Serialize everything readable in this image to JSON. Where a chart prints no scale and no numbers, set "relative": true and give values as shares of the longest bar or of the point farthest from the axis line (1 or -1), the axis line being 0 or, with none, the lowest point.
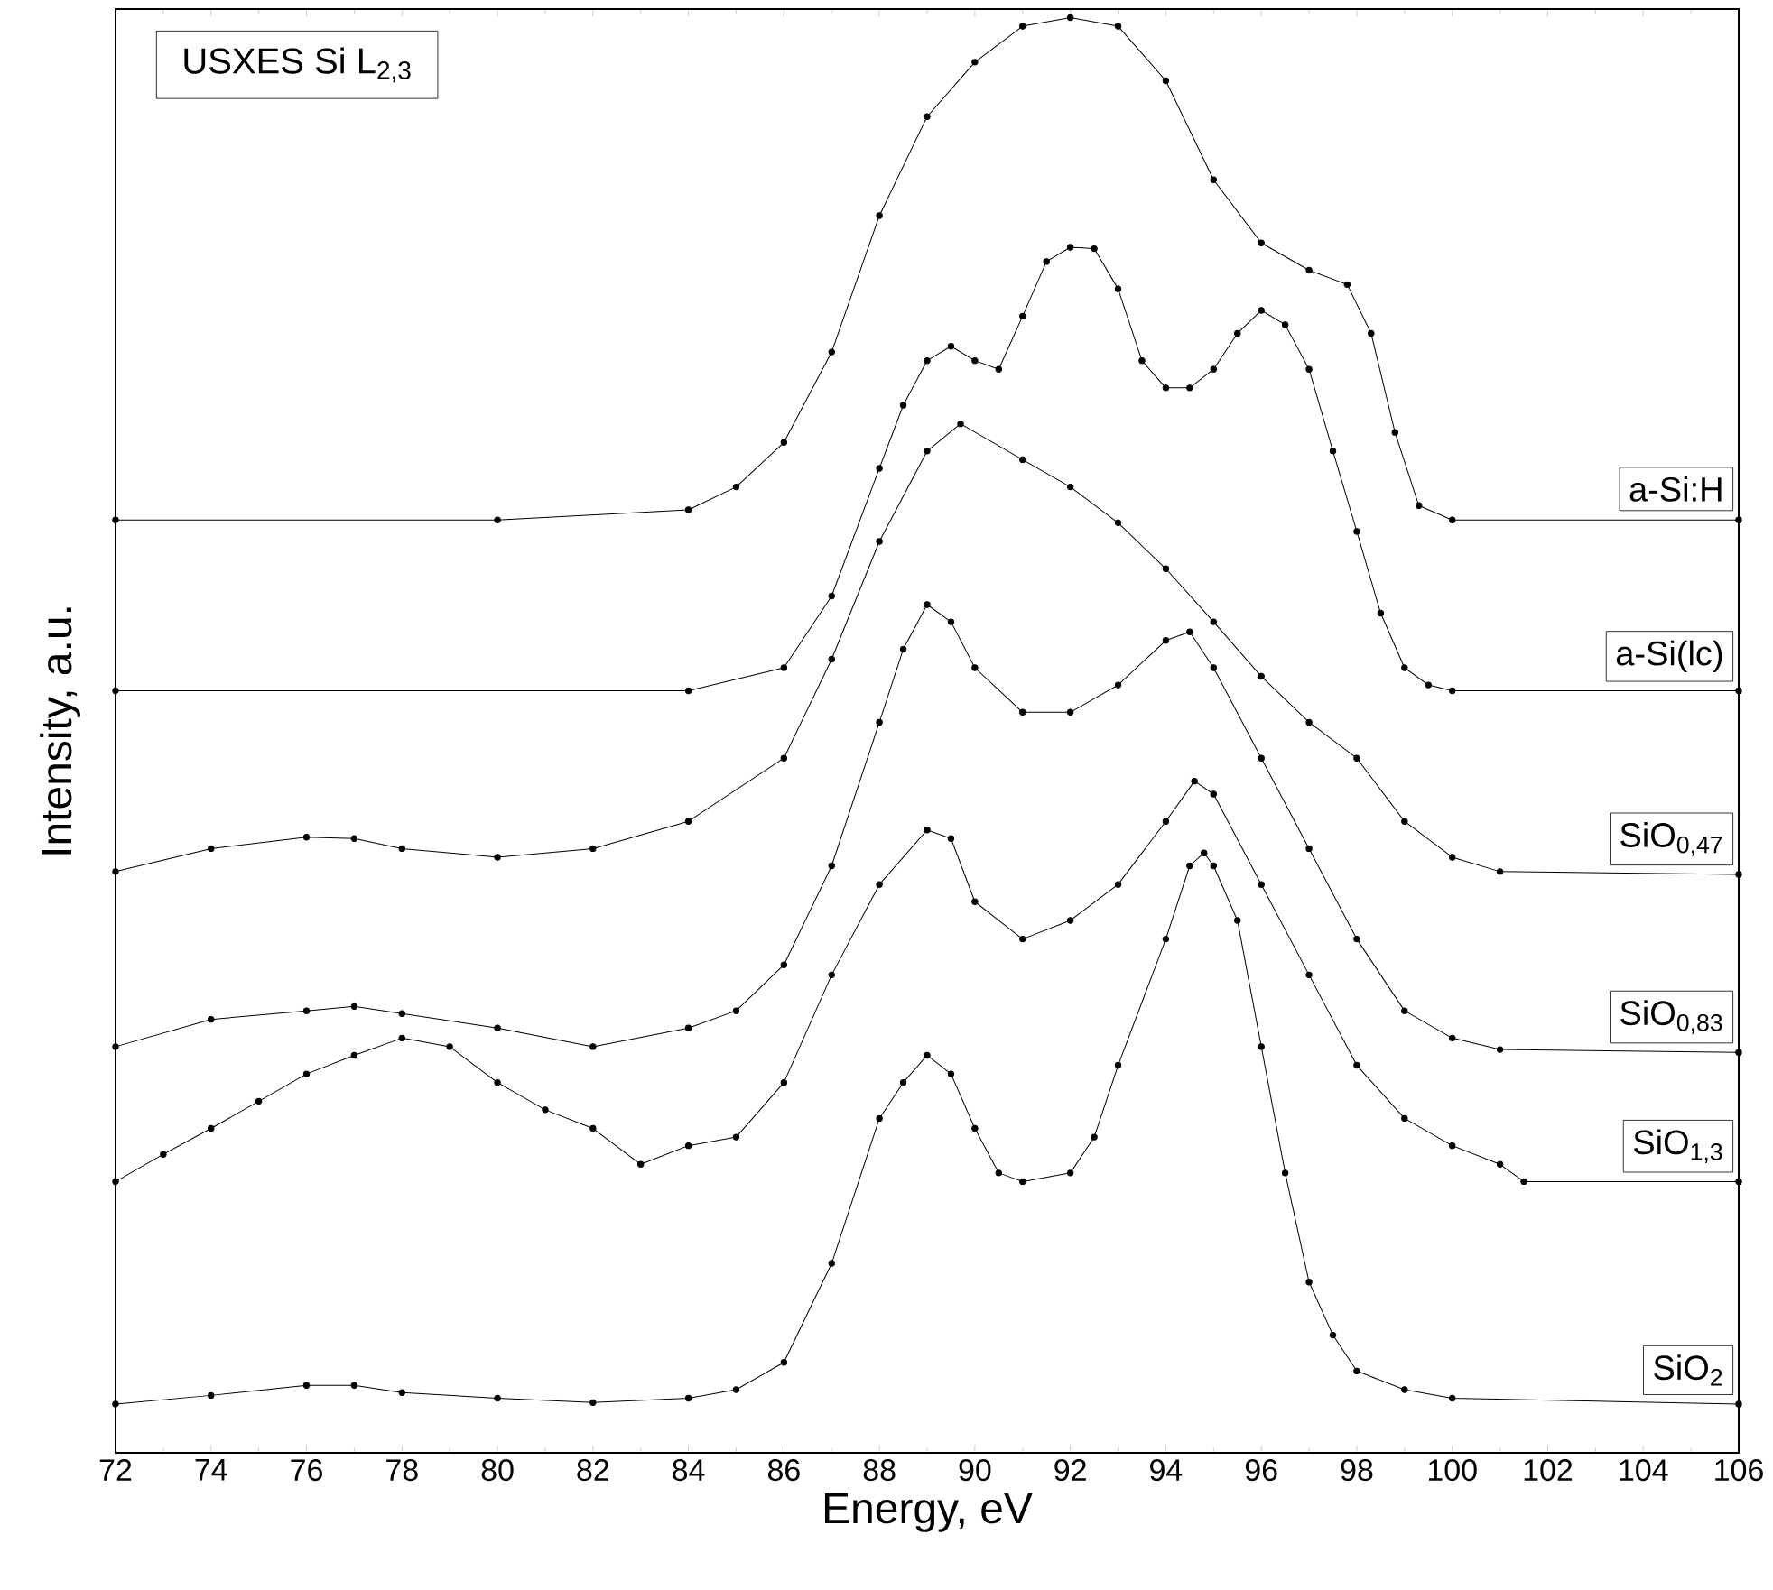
{
  "chart_data": {
    "type": "line",
    "title": "USXES Si L$_{2,3}$",
    "xlabel": "Energy, eV",
    "ylabel": "Intensity, a.u.",
    "relative": true,
    "xlim": [
      72,
      106
    ],
    "xticks": [
      72,
      74,
      76,
      78,
      80,
      82,
      84,
      86,
      88,
      90,
      92,
      94,
      96,
      98,
      100,
      102,
      104,
      106
    ],
    "marker": "circle",
    "legend": false,
    "series": [
      {
        "name": "a-Si:H",
        "color": "#000000",
        "x": [
          72,
          80,
          84,
          85,
          86,
          87,
          88,
          89,
          90,
          91,
          92,
          93,
          94,
          95,
          96,
          97,
          97.8,
          98.3,
          98.8,
          99.3,
          100,
          106
        ],
        "values": [
          0.65,
          0.65,
          0.657,
          0.673,
          0.704,
          0.767,
          0.862,
          0.931,
          0.969,
          0.994,
          1.0,
          0.994,
          0.956,
          0.887,
          0.843,
          0.824,
          0.814,
          0.78,
          0.711,
          0.66,
          0.65,
          0.65
        ]
      },
      {
        "name": "a-Si(lc)",
        "color": "#000000",
        "x": [
          72,
          84,
          86,
          87,
          88,
          88.5,
          89,
          89.5,
          90,
          90.5,
          91,
          91.5,
          92,
          92.5,
          93,
          93.5,
          94,
          94.5,
          95,
          95.5,
          96,
          96.5,
          97,
          97.5,
          98,
          98.5,
          99,
          99.5,
          100,
          106
        ],
        "values": [
          0.531,
          0.531,
          0.547,
          0.597,
          0.686,
          0.73,
          0.761,
          0.771,
          0.761,
          0.755,
          0.792,
          0.83,
          0.84,
          0.839,
          0.811,
          0.761,
          0.742,
          0.742,
          0.755,
          0.78,
          0.796,
          0.786,
          0.755,
          0.698,
          0.642,
          0.585,
          0.547,
          0.535,
          0.531,
          0.531
        ]
      },
      {
        "name": "SiO$_{0,47}$",
        "color": "#000000",
        "x": [
          72,
          74,
          76,
          77,
          78,
          80,
          82,
          84,
          86,
          87,
          88,
          89,
          89.7,
          91,
          92,
          93,
          94,
          95,
          96,
          97,
          98,
          99,
          100,
          101,
          106
        ],
        "values": [
          0.405,
          0.421,
          0.429,
          0.428,
          0.421,
          0.415,
          0.421,
          0.44,
          0.484,
          0.553,
          0.635,
          0.698,
          0.717,
          0.692,
          0.673,
          0.648,
          0.616,
          0.579,
          0.541,
          0.509,
          0.484,
          0.44,
          0.415,
          0.405,
          0.403
        ]
      },
      {
        "name": "SiO$_{0,83}$",
        "color": "#000000",
        "x": [
          72,
          74,
          76,
          77,
          78,
          80,
          82,
          84,
          85,
          86,
          87,
          88,
          88.5,
          89,
          89.5,
          90,
          91,
          92,
          93,
          94,
          94.5,
          95,
          96,
          97,
          98,
          99,
          100,
          101,
          106
        ],
        "values": [
          0.283,
          0.302,
          0.308,
          0.311,
          0.306,
          0.296,
          0.283,
          0.296,
          0.308,
          0.34,
          0.409,
          0.509,
          0.56,
          0.591,
          0.579,
          0.547,
          0.516,
          0.516,
          0.535,
          0.566,
          0.572,
          0.547,
          0.484,
          0.421,
          0.358,
          0.308,
          0.289,
          0.281,
          0.279
        ]
      },
      {
        "name": "SiO$_{1,3}$",
        "color": "#000000",
        "x": [
          72,
          73,
          74,
          75,
          76,
          77,
          78,
          79,
          80,
          81,
          82,
          83,
          84,
          85,
          86,
          87,
          88,
          89,
          89.5,
          90,
          91,
          92,
          93,
          94,
          94.6,
          95,
          96,
          97,
          98,
          99,
          100,
          101,
          101.5,
          106
        ],
        "values": [
          0.189,
          0.208,
          0.226,
          0.245,
          0.264,
          0.277,
          0.289,
          0.283,
          0.258,
          0.239,
          0.226,
          0.201,
          0.214,
          0.22,
          0.258,
          0.333,
          0.396,
          0.434,
          0.428,
          0.384,
          0.358,
          0.371,
          0.396,
          0.44,
          0.468,
          0.459,
          0.396,
          0.333,
          0.27,
          0.233,
          0.214,
          0.201,
          0.189,
          0.189
        ]
      },
      {
        "name": "SiO$_{2}$",
        "color": "#000000",
        "x": [
          72,
          74,
          76,
          77,
          78,
          80,
          82,
          84,
          85,
          86,
          87,
          88,
          88.5,
          89,
          89.5,
          90,
          90.5,
          91,
          92,
          92.5,
          93,
          94,
          94.5,
          94.8,
          95,
          95.5,
          96,
          96.5,
          97,
          97.5,
          98,
          99,
          100,
          106
        ],
        "values": [
          0.034,
          0.04,
          0.047,
          0.047,
          0.042,
          0.038,
          0.035,
          0.038,
          0.044,
          0.063,
          0.132,
          0.233,
          0.258,
          0.277,
          0.264,
          0.226,
          0.195,
          0.189,
          0.195,
          0.22,
          0.27,
          0.358,
          0.409,
          0.418,
          0.409,
          0.371,
          0.283,
          0.195,
          0.119,
          0.082,
          0.057,
          0.044,
          0.038,
          0.034
        ]
      }
    ]
  }
}
